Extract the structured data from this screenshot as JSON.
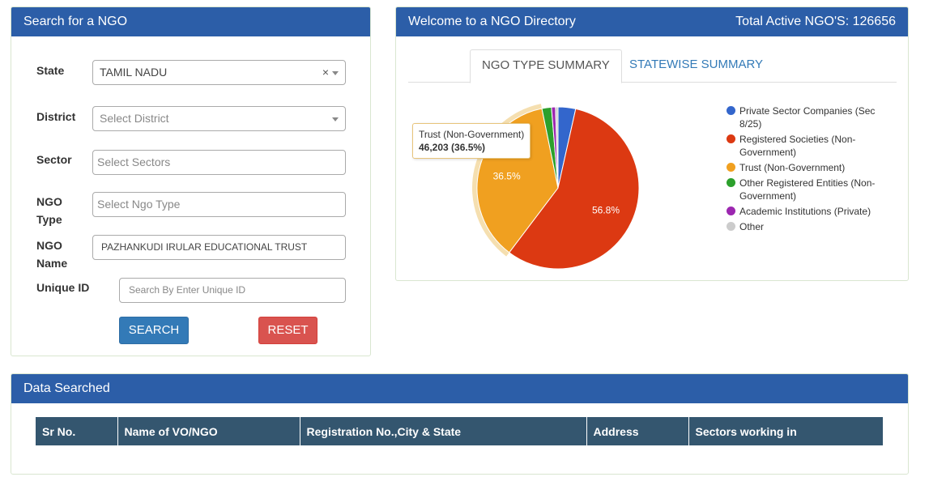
{
  "search": {
    "title": "Search for a NGO",
    "state_label": "State",
    "state_value": "TAMIL NADU",
    "clear_glyph": "×",
    "district_label": "District",
    "district_placeholder": "Select District",
    "sector_label": "Sector",
    "sector_placeholder": "Select Sectors",
    "ngo_type_label_1": "NGO",
    "ngo_type_label_2": "Type",
    "ngo_type_placeholder": "Select Ngo Type",
    "ngo_name_label_1": "NGO",
    "ngo_name_label_2": "Name",
    "ngo_name_value": "PAZHANKUDI IRULAR EDUCATIONAL TRUST",
    "unique_id_label": "Unique ID",
    "unique_id_placeholder": "Search By Enter Unique ID",
    "search_button": "SEARCH",
    "reset_button": "RESET"
  },
  "welcome": {
    "title": "Welcome to a NGO Directory",
    "total_label": "Total Active NGO'S: 126656",
    "tabs": [
      {
        "label": "NGO TYPE SUMMARY",
        "active": true
      },
      {
        "label": "STATEWISE SUMMARY",
        "active": false
      }
    ]
  },
  "chart_data": {
    "type": "pie",
    "slices": [
      {
        "name": "Private Sector Companies (Sec 8/25)",
        "value": 3.5,
        "color": "#3366cc"
      },
      {
        "name": "Registered Societies (Non-Government)",
        "value": 56.8,
        "label": "56.8%",
        "color": "#dc3912"
      },
      {
        "name": "Trust (Non-Government)",
        "value": 36.5,
        "label": "36.5%",
        "color": "#f0a020"
      },
      {
        "name": "Other Registered Entities (Non-Government)",
        "value": 1.9,
        "color": "#2ca02c"
      },
      {
        "name": "Academic Institutions (Private)",
        "value": 0.8,
        "color": "#9c27b0"
      },
      {
        "name": "Other",
        "value": 0.5,
        "color": "#cccccc"
      }
    ],
    "legend": [
      {
        "label": "Private Sector Companies (Sec 8/25)",
        "color": "#3366cc"
      },
      {
        "label": "Registered Societies (Non-Government)",
        "color": "#dc3912"
      },
      {
        "label": "Trust (Non-Government)",
        "color": "#f0a020"
      },
      {
        "label": "Other Registered Entities (Non-Government)",
        "color": "#2ca02c"
      },
      {
        "label": "Academic Institutions (Private)",
        "color": "#9c27b0"
      },
      {
        "label": "Other",
        "color": "#cccccc"
      }
    ],
    "tooltip": {
      "title": "Trust (Non-Government)",
      "value": "46,203 (36.5%)"
    }
  },
  "data_searched": {
    "title": "Data Searched",
    "columns": [
      "Sr No.",
      "Name of VO/NGO",
      "Registration No.,City & State",
      "Address",
      "Sectors working in"
    ]
  },
  "colors": {
    "header": "#2c5ea8",
    "table_header": "#34566f",
    "search_btn": "#337ab7",
    "reset_btn": "#d9534f"
  }
}
